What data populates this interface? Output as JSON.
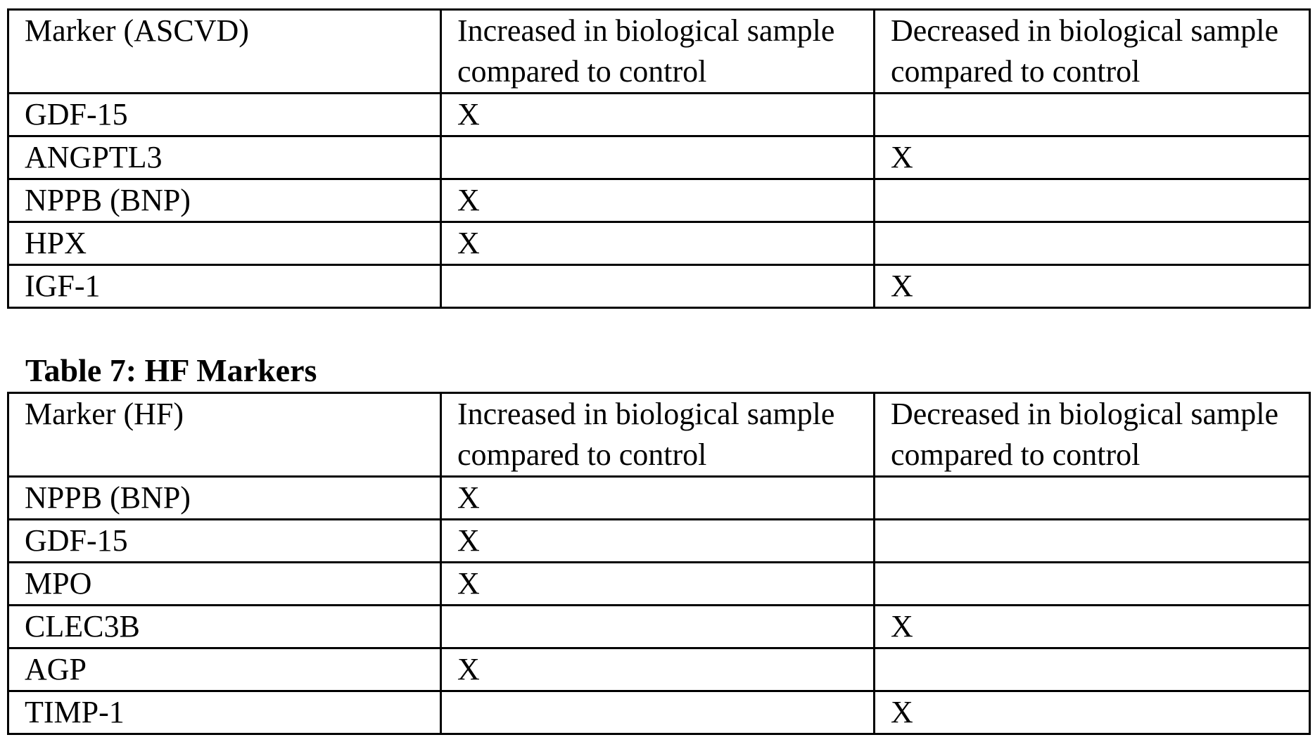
{
  "table_ascvd": {
    "headers": [
      "Marker (ASCVD)",
      "Increased in biological sample compared to control",
      "Decreased in biological sample compared to control"
    ],
    "rows": [
      [
        "GDF-15",
        "X",
        ""
      ],
      [
        "ANGPTL3",
        "",
        "X"
      ],
      [
        "NPPB (BNP)",
        "X",
        ""
      ],
      [
        "HPX",
        "X",
        ""
      ],
      [
        "IGF-1",
        "",
        "X"
      ]
    ]
  },
  "table_hf": {
    "caption": "Table 7: HF Markers",
    "headers": [
      "Marker (HF)",
      "Increased in biological sample compared to control",
      "Decreased in biological sample compared to control"
    ],
    "rows": [
      [
        "NPPB (BNP)",
        "X",
        ""
      ],
      [
        "GDF-15",
        "X",
        ""
      ],
      [
        "MPO",
        "X",
        ""
      ],
      [
        "CLEC3B",
        "",
        "X"
      ],
      [
        "AGP",
        "X",
        ""
      ],
      [
        "TIMP-1",
        "",
        "X"
      ]
    ]
  }
}
